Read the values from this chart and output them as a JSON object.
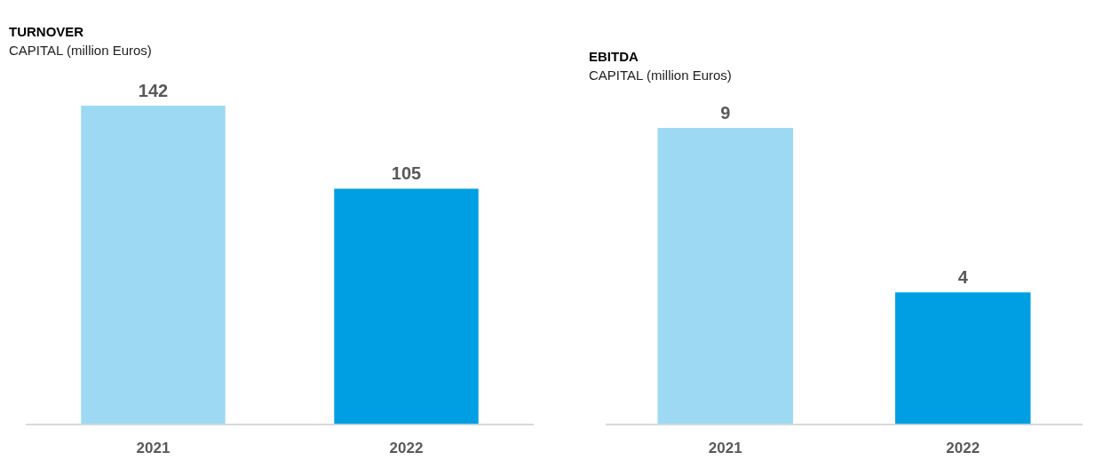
{
  "chart_data": [
    {
      "type": "bar",
      "title": "TURNOVER",
      "subtitle": "CAPITAL (million Euros)",
      "categories": [
        "2021",
        "2022"
      ],
      "values": [
        142,
        105
      ],
      "colors": [
        "#9dd9f3",
        "#009fe3"
      ],
      "data_labels": true
    },
    {
      "type": "bar",
      "title": "EBITDA",
      "subtitle": "CAPITAL (million Euros)",
      "categories": [
        "2021",
        "2022"
      ],
      "values": [
        9,
        4
      ],
      "colors": [
        "#9dd9f3",
        "#009fe3"
      ],
      "data_labels": true
    }
  ]
}
